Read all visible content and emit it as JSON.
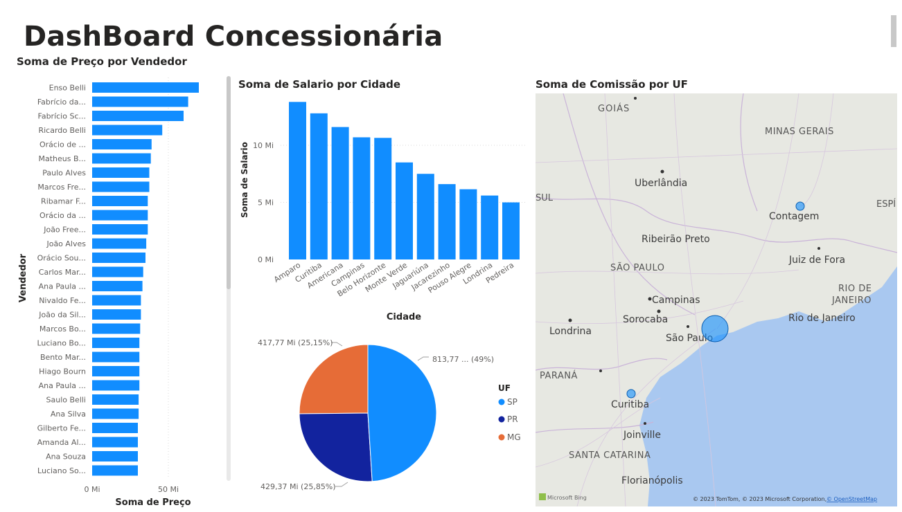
{
  "page": {
    "title": "DashBoard Concessionária"
  },
  "vendor_chart": {
    "title": "Soma de Preço por Vendedor",
    "ylabel": "Vendedor",
    "xlabel": "Soma de Preço",
    "ticks": [
      "0 Mi",
      "50 Mi"
    ]
  },
  "city_chart": {
    "title": "Soma de Salario por Cidade",
    "ylabel": "Soma de Salario",
    "xlabel": "Cidade",
    "ticks": [
      "0 Mi",
      "5 Mi",
      "10 Mi"
    ]
  },
  "pie_chart": {
    "legend_title": "UF",
    "labels": [
      "813,77 ... (49%)",
      "429,37 Mi (25,85%)",
      "417,77 Mi (25,15%)"
    ],
    "legend": [
      "SP",
      "PR",
      "MG"
    ]
  },
  "map": {
    "title": "Soma de Comissão por UF",
    "places": [
      "GOIÁS",
      "MINAS GERAIS",
      "Uberlândia",
      "SUL",
      "ESPÍ",
      "Contagem",
      "Ribeirão Preto",
      "SÃO PAULO",
      "Juiz de Fora",
      "RIO DE",
      "JANEIRO",
      "Campinas",
      "Sorocaba",
      "Rio de Janeiro",
      "Londrina",
      "São Paulo",
      "PARANÁ",
      "Curitiba",
      "Joinville",
      "SANTA CATARINA",
      "Florianópolis"
    ],
    "brand": "Microsoft Bing",
    "attribution": "© 2023 TomTom, © 2023 Microsoft Corporation,",
    "attribution_link": "© OpenStreetMap"
  },
  "colors": {
    "blue": "#118DFF",
    "navy": "#12239E",
    "orange": "#E66C37"
  },
  "chart_data": [
    {
      "type": "bar",
      "orientation": "horizontal",
      "title": "Soma de Preço por Vendedor",
      "xlabel": "Soma de Preço",
      "ylabel": "Vendedor",
      "xlim": [
        0,
        70
      ],
      "categories": [
        "Enso Belli",
        "Fabrício da...",
        "Fabrício Sc...",
        "Ricardo Belli",
        "Orácio de ...",
        "Matheus B...",
        "Paulo Alves",
        "Marcos Fre...",
        "Ribamar F...",
        "Orácio da ...",
        "João Free...",
        "João Alves",
        "Orácio Sou...",
        "Carlos Mar...",
        "Ana Paula ...",
        "Nivaldo Fe...",
        "João da Sil...",
        "Marcos Bo...",
        "Luciano Bo...",
        "Bento Mar...",
        "Hiago Bourn",
        "Ana Paula ...",
        "Saulo Belli",
        "Ana Silva",
        "Gilberto Fe...",
        "Amanda Al...",
        "Ana Souza",
        "Luciano So..."
      ],
      "values": [
        70.0,
        63.0,
        60.0,
        46.0,
        39.0,
        38.5,
        37.5,
        37.5,
        36.5,
        36.5,
        36.5,
        35.5,
        35.0,
        33.5,
        33.0,
        32.0,
        32.0,
        31.5,
        31.0,
        31.0,
        31.0,
        31.0,
        30.5,
        30.5,
        30.0,
        30.0,
        30.0,
        30.0
      ]
    },
    {
      "type": "bar",
      "title": "Soma de Salario por Cidade",
      "xlabel": "Cidade",
      "ylabel": "Soma de Salario",
      "ylim": [
        0,
        14
      ],
      "categories": [
        "Amparo",
        "Curitiba",
        "Americana",
        "Campinas",
        "Belo Horizonte",
        "Monte Verde",
        "Jaguariúna",
        "Jacarezinho",
        "Pouso Alegre",
        "Londrina",
        "Pedreira"
      ],
      "values": [
        13.8,
        12.8,
        11.6,
        10.7,
        10.65,
        8.5,
        7.5,
        6.6,
        6.15,
        5.6,
        5.0
      ]
    },
    {
      "type": "pie",
      "legend_title": "UF",
      "categories": [
        "SP",
        "PR",
        "MG"
      ],
      "values": [
        813.77,
        429.37,
        417.77
      ],
      "percents": [
        49,
        25.85,
        25.15
      ],
      "colors": [
        "#118DFF",
        "#12239E",
        "#E66C37"
      ]
    },
    {
      "type": "bubble-map",
      "title": "Soma de Comissão por UF",
      "points": [
        {
          "place": "São Paulo",
          "relative_size": 1.0
        },
        {
          "place": "Curitiba",
          "relative_size": 0.35
        },
        {
          "place": "Contagem",
          "relative_size": 0.33
        }
      ]
    }
  ]
}
